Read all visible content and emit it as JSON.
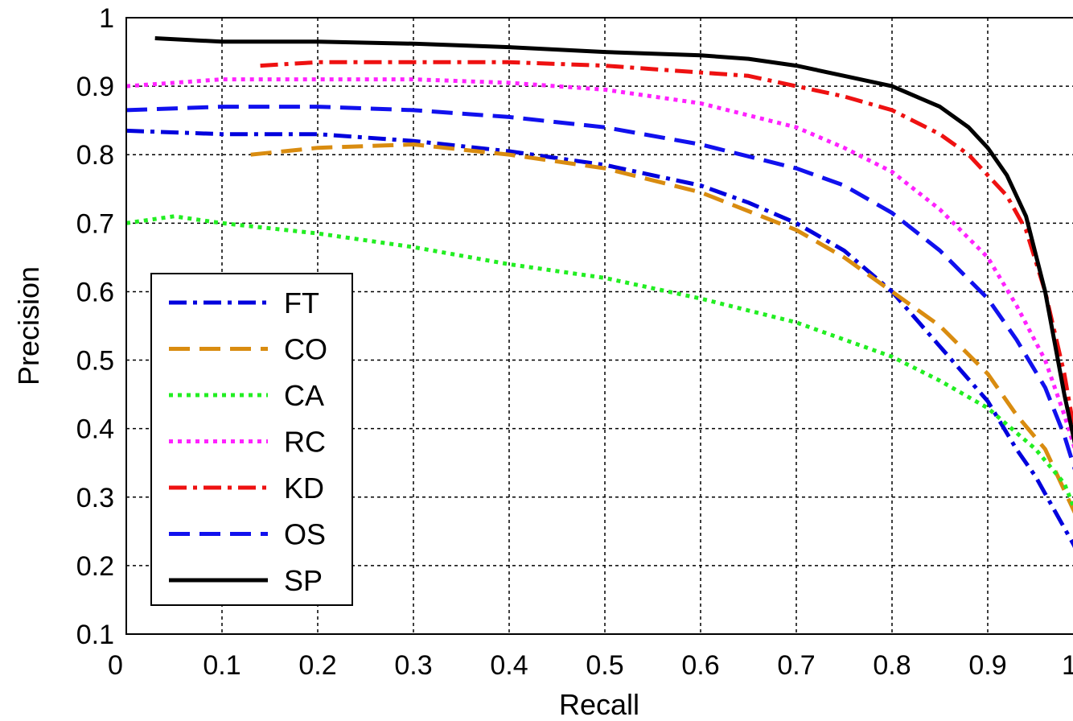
{
  "chart_data": {
    "type": "line",
    "title": "",
    "xlabel": "Recall",
    "ylabel": "Precision",
    "xlim": [
      0,
      1
    ],
    "ylim": [
      0.1,
      1
    ],
    "xticks": [
      "0",
      "0.1",
      "0.2",
      "0.3",
      "0.4",
      "0.5",
      "0.6",
      "0.7",
      "0.8",
      "0.9",
      "1"
    ],
    "yticks": [
      "0.1",
      "0.2",
      "0.3",
      "0.4",
      "0.5",
      "0.6",
      "0.7",
      "0.8",
      "0.9",
      "1"
    ],
    "grid": true,
    "legend_position": "lower-left",
    "series": [
      {
        "name": "FT",
        "color": "#0000dd",
        "style": "dash-dot",
        "x": [
          0.0,
          0.1,
          0.2,
          0.3,
          0.4,
          0.5,
          0.55,
          0.6,
          0.65,
          0.7,
          0.75,
          0.8,
          0.85,
          0.9,
          0.93,
          0.95,
          0.97,
          0.99,
          1.0
        ],
        "y": [
          0.835,
          0.83,
          0.83,
          0.82,
          0.805,
          0.785,
          0.77,
          0.755,
          0.73,
          0.7,
          0.66,
          0.6,
          0.52,
          0.44,
          0.37,
          0.33,
          0.28,
          0.23,
          0.2
        ]
      },
      {
        "name": "CO",
        "color": "#d98c10",
        "style": "dashed",
        "x": [
          0.13,
          0.2,
          0.3,
          0.4,
          0.5,
          0.6,
          0.7,
          0.75,
          0.8,
          0.85,
          0.9,
          0.93,
          0.96,
          0.98,
          1.0
        ],
        "y": [
          0.8,
          0.81,
          0.815,
          0.8,
          0.78,
          0.745,
          0.69,
          0.65,
          0.6,
          0.55,
          0.48,
          0.42,
          0.37,
          0.31,
          0.25
        ]
      },
      {
        "name": "CA",
        "color": "#22ee22",
        "style": "dotted",
        "x": [
          0.0,
          0.05,
          0.1,
          0.2,
          0.3,
          0.4,
          0.5,
          0.6,
          0.7,
          0.8,
          0.85,
          0.9,
          0.95,
          0.98,
          1.0
        ],
        "y": [
          0.7,
          0.71,
          0.7,
          0.685,
          0.665,
          0.64,
          0.62,
          0.59,
          0.555,
          0.505,
          0.47,
          0.43,
          0.37,
          0.32,
          0.25
        ]
      },
      {
        "name": "RC",
        "color": "#ff22ff",
        "style": "dotted",
        "x": [
          0.0,
          0.1,
          0.2,
          0.3,
          0.4,
          0.5,
          0.6,
          0.7,
          0.75,
          0.8,
          0.85,
          0.9,
          0.93,
          0.96,
          0.98,
          1.0
        ],
        "y": [
          0.9,
          0.91,
          0.91,
          0.91,
          0.905,
          0.895,
          0.875,
          0.84,
          0.81,
          0.775,
          0.72,
          0.65,
          0.58,
          0.5,
          0.42,
          0.33
        ]
      },
      {
        "name": "KD",
        "color": "#ee1111",
        "style": "dash-dot",
        "x": [
          0.14,
          0.2,
          0.3,
          0.4,
          0.5,
          0.6,
          0.65,
          0.7,
          0.75,
          0.8,
          0.85,
          0.88,
          0.9,
          0.92,
          0.94,
          0.96,
          0.98,
          1.0
        ],
        "y": [
          0.93,
          0.935,
          0.935,
          0.935,
          0.93,
          0.92,
          0.915,
          0.9,
          0.885,
          0.865,
          0.83,
          0.8,
          0.77,
          0.74,
          0.69,
          0.6,
          0.48,
          0.32
        ]
      },
      {
        "name": "OS",
        "color": "#1111ee",
        "style": "dashed",
        "x": [
          0.0,
          0.1,
          0.2,
          0.3,
          0.4,
          0.5,
          0.6,
          0.7,
          0.75,
          0.8,
          0.85,
          0.9,
          0.93,
          0.96,
          0.98,
          1.0
        ],
        "y": [
          0.865,
          0.87,
          0.87,
          0.865,
          0.855,
          0.84,
          0.815,
          0.78,
          0.755,
          0.715,
          0.66,
          0.59,
          0.53,
          0.46,
          0.39,
          0.3
        ]
      },
      {
        "name": "SP",
        "color": "#000000",
        "style": "solid",
        "x": [
          0.03,
          0.1,
          0.2,
          0.3,
          0.4,
          0.5,
          0.6,
          0.65,
          0.7,
          0.75,
          0.8,
          0.85,
          0.88,
          0.9,
          0.92,
          0.94,
          0.96,
          0.98,
          1.0
        ],
        "y": [
          0.97,
          0.965,
          0.965,
          0.962,
          0.957,
          0.95,
          0.945,
          0.94,
          0.93,
          0.915,
          0.9,
          0.87,
          0.84,
          0.81,
          0.77,
          0.71,
          0.6,
          0.45,
          0.32
        ]
      }
    ]
  }
}
